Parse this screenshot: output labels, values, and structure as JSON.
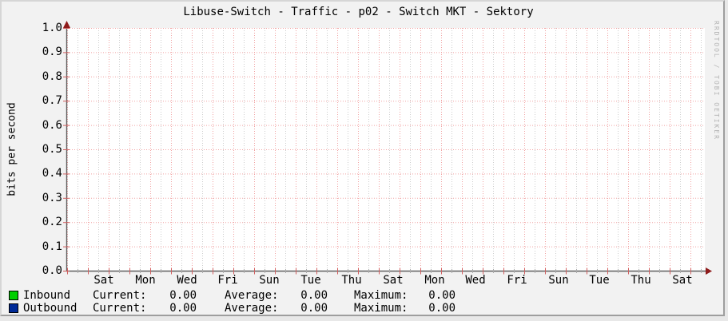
{
  "title": "Libuse-Switch - Traffic - p02 - Switch MKT - Sektory",
  "watermark": "RRDTOOL / TOBI OETIKER",
  "y_axis": {
    "label": "bits per second",
    "ticks": [
      "1.0",
      "0.9",
      "0.8",
      "0.7",
      "0.6",
      "0.5",
      "0.4",
      "0.3",
      "0.2",
      "0.1",
      "0.0"
    ]
  },
  "x_axis": {
    "ticks": [
      "Sat",
      "Mon",
      "Wed",
      "Fri",
      "Sun",
      "Tue",
      "Thu",
      "Sat",
      "Mon",
      "Wed",
      "Fri",
      "Sun",
      "Tue",
      "Thu",
      "Sat"
    ]
  },
  "legend": {
    "columns": [
      "Current:",
      "Average:",
      "Maximum:"
    ],
    "series": [
      {
        "name": "Inbound",
        "color": "#00CF00",
        "current": "0.00",
        "average": "0.00",
        "maximum": "0.00"
      },
      {
        "name": "Outbound",
        "color": "#002A97",
        "current": "0.00",
        "average": "0.00",
        "maximum": "0.00"
      }
    ]
  },
  "colors": {
    "background": "#F2F2F2",
    "plot_background": "#FFFFFF",
    "grid_major": "#F1A2A2",
    "grid_minor": "#CDCDCD",
    "axis": "#5E5E5E",
    "arrow": "#8F1C1C",
    "tick_red": "#D06060",
    "tick_gray": "#ABABAB",
    "watermark_text": "#B3B3B3",
    "inbound": "#00CF00",
    "outbound": "#002A97"
  },
  "chart_data": {
    "type": "area",
    "title": "Libuse-Switch - Traffic - p02 - Switch MKT - Sektory",
    "xlabel": "",
    "ylabel": "bits per second",
    "ylim": [
      0.0,
      1.0
    ],
    "y_ticks": [
      0.0,
      0.1,
      0.2,
      0.3,
      0.4,
      0.5,
      0.6,
      0.7,
      0.8,
      0.9,
      1.0
    ],
    "x": [
      "Sat",
      "Mon",
      "Wed",
      "Fri",
      "Sun",
      "Tue",
      "Thu",
      "Sat",
      "Mon",
      "Wed",
      "Fri",
      "Sun",
      "Tue",
      "Thu",
      "Sat"
    ],
    "series": [
      {
        "name": "Inbound",
        "color": "#00CF00",
        "values": [
          0,
          0,
          0,
          0,
          0,
          0,
          0,
          0,
          0,
          0,
          0,
          0,
          0,
          0,
          0
        ],
        "current": 0.0,
        "average": 0.0,
        "maximum": 0.0
      },
      {
        "name": "Outbound",
        "color": "#002A97",
        "values": [
          0,
          0,
          0,
          0,
          0,
          0,
          0,
          0,
          0,
          0,
          0,
          0,
          0,
          0,
          0
        ],
        "current": 0.0,
        "average": 0.0,
        "maximum": 0.0
      }
    ],
    "grid": true,
    "legend_position": "bottom"
  }
}
